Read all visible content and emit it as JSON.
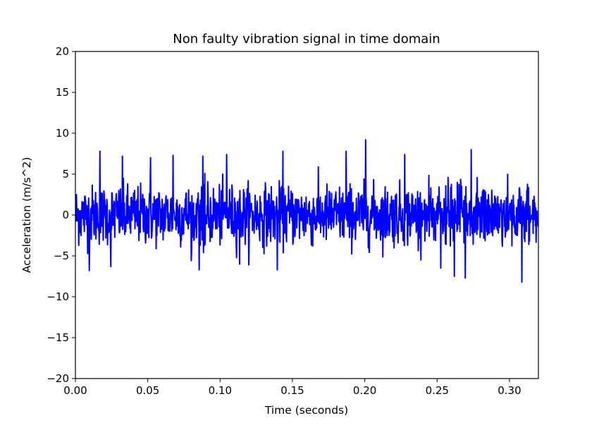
{
  "chart_data": {
    "type": "line",
    "title": "Non faulty vibration signal in time domain",
    "xlabel": "Time (seconds)",
    "ylabel": "Acceleration (m/s^2)",
    "xlim": [
      0.0,
      0.32
    ],
    "ylim": [
      -20,
      20
    ],
    "x_ticks": [
      0.0,
      0.05,
      0.1,
      0.15,
      0.2,
      0.25,
      0.3
    ],
    "x_tick_labels": [
      "0.00",
      "0.05",
      "0.10",
      "0.15",
      "0.20",
      "0.25",
      "0.30"
    ],
    "y_ticks": [
      20,
      15,
      10,
      5,
      0,
      -5,
      -10,
      -15,
      -20
    ],
    "y_tick_labels": [
      "20",
      "15",
      "10",
      "5",
      "0",
      "−5",
      "−10",
      "−15",
      "−20"
    ],
    "grid": false,
    "legend": "none",
    "series": [
      {
        "color": "#0000ff",
        "signal": {
          "kind": "vibration-noise",
          "sample_count": 1400,
          "amplitude_rms": 1.8,
          "typical_range": [
            -5,
            5
          ],
          "peak_points": [
            {
              "x": 0.017,
              "y": 7.8
            },
            {
              "x": 0.0095,
              "y": -6.8
            },
            {
              "x": 0.0325,
              "y": 7.2
            },
            {
              "x": 0.052,
              "y": 7.0
            },
            {
              "x": 0.0675,
              "y": 7.3
            },
            {
              "x": 0.088,
              "y": 7.2
            },
            {
              "x": 0.1045,
              "y": 7.4
            },
            {
              "x": 0.1435,
              "y": 7.8
            },
            {
              "x": 0.1395,
              "y": -6.7
            },
            {
              "x": 0.187,
              "y": 7.8
            },
            {
              "x": 0.2005,
              "y": 9.2
            },
            {
              "x": 0.2275,
              "y": 7.4
            },
            {
              "x": 0.2735,
              "y": 8.0
            },
            {
              "x": 0.262,
              "y": -7.5
            },
            {
              "x": 0.2695,
              "y": -7.7
            },
            {
              "x": 0.3085,
              "y": -8.2
            },
            {
              "x": 0.2525,
              "y": -6.5
            },
            {
              "x": 0.1135,
              "y": -6.0
            },
            {
              "x": 0.0245,
              "y": -6.3
            },
            {
              "x": 0.0855,
              "y": -6.7
            }
          ]
        }
      }
    ]
  }
}
